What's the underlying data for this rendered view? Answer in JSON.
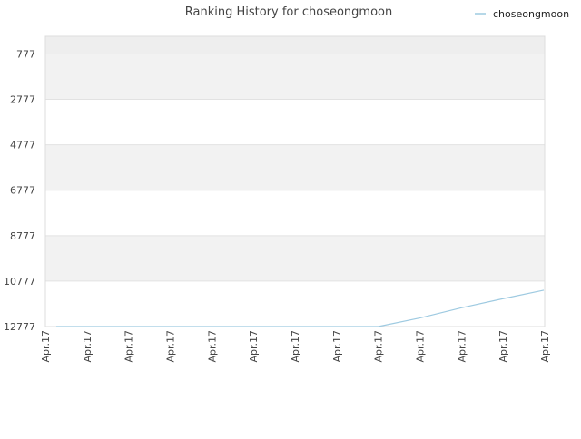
{
  "chart_data": {
    "type": "line",
    "title": "Ranking History for choseongmoon",
    "xlabel": "",
    "ylabel": "",
    "legend_position": "top-right",
    "grid": true,
    "y_reversed": true,
    "ylim": [
      12777,
      0
    ],
    "y_ticks": [
      777,
      2777,
      4777,
      6777,
      8777,
      10777,
      12777
    ],
    "x_tick_labels": [
      "Apr.17",
      "Apr.17",
      "Apr.17",
      "Apr.17",
      "Apr.17",
      "Apr.17",
      "Apr.17",
      "Apr.17",
      "Apr.17",
      "Apr.17",
      "Apr.17",
      "Apr.17",
      "Apr.17"
    ],
    "series": [
      {
        "name": "choseongmoon",
        "color": "#9ecae1",
        "x": [
          0,
          1,
          2,
          3,
          4,
          5,
          6,
          7,
          8,
          9,
          10,
          11,
          12
        ],
        "values": [
          12777,
          12777,
          12777,
          12777,
          12777,
          12777,
          12777,
          12777,
          12777,
          12400,
          11950,
          11550,
          11177
        ]
      }
    ]
  }
}
